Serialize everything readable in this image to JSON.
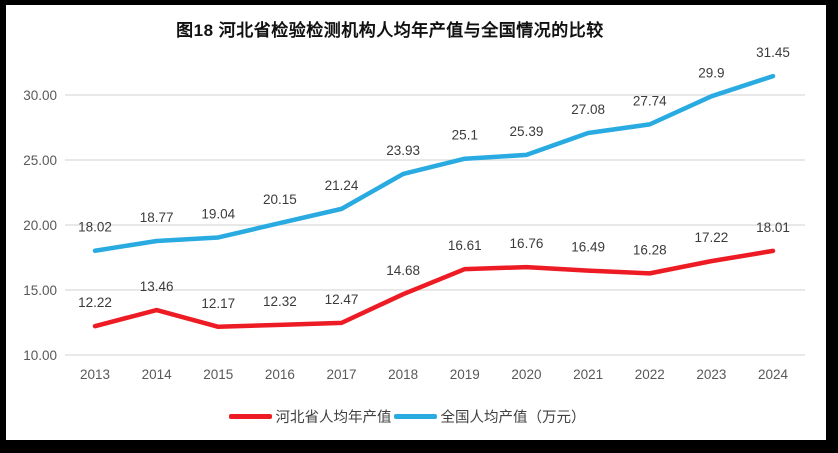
{
  "title": "图18 河北省检验检测机构人均年产值与全国情况的比较",
  "chart_data": {
    "type": "line",
    "title": "图18 河北省检验检测机构人均年产值与全国情况的比较",
    "categories": [
      "2013",
      "2014",
      "2015",
      "2016",
      "2017",
      "2018",
      "2019",
      "2020",
      "2021",
      "2022",
      "2023",
      "2024"
    ],
    "series": [
      {
        "name": "河北省人均年产值",
        "color": "#ED1C24",
        "values": [
          12.22,
          13.46,
          12.17,
          12.32,
          12.47,
          14.68,
          16.61,
          16.76,
          16.49,
          16.28,
          17.22,
          18.01
        ],
        "labels": [
          "12.22",
          "13.46",
          "12.17",
          "12.32",
          "12.47",
          "14.68",
          "16.61",
          "16.76",
          "16.49",
          "16.28",
          "17.22",
          "18.01"
        ]
      },
      {
        "name": "全国人均产值（万元）",
        "color": "#29ABE2",
        "values": [
          18.02,
          18.77,
          19.04,
          20.15,
          21.24,
          23.93,
          25.1,
          25.39,
          27.08,
          27.74,
          29.9,
          31.45
        ],
        "labels": [
          "18.02",
          "18.77",
          "19.04",
          "20.15",
          "21.24",
          "23.93",
          "25.1",
          "25.39",
          "27.08",
          "27.74",
          "29.9",
          "31.45"
        ]
      }
    ],
    "yticks": [
      {
        "value": 10,
        "label": "10.00"
      },
      {
        "value": 15,
        "label": "15.00"
      },
      {
        "value": 20,
        "label": "20.00"
      },
      {
        "value": 25,
        "label": "25.00"
      },
      {
        "value": 30,
        "label": "30.00"
      }
    ],
    "ylim": [
      10,
      33
    ],
    "grid": true,
    "legend_position": "bottom"
  },
  "colors": {
    "grid": "#D9D9D9",
    "axis_text": "#595959",
    "data_label": "#3B3B3B",
    "frame_border": "#000000",
    "background": "#FFFFFF"
  }
}
